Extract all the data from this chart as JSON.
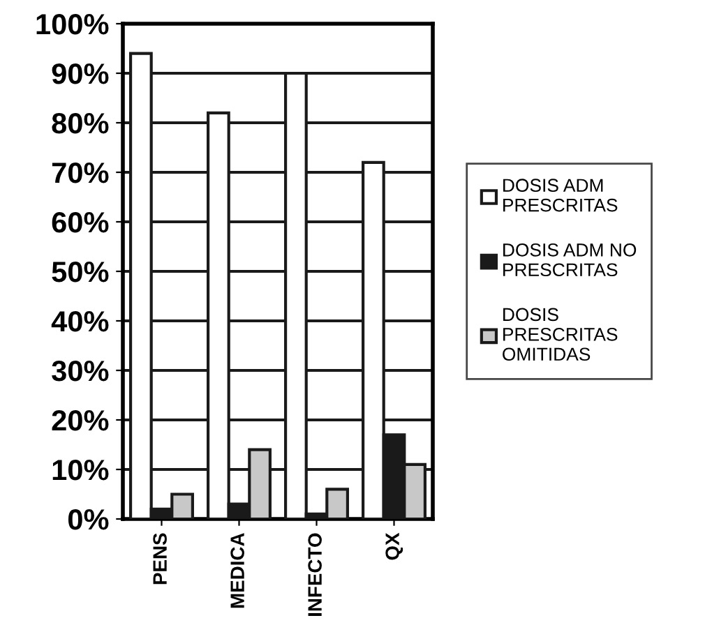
{
  "chart_data": {
    "type": "bar",
    "categories": [
      "PENS",
      "MEDICA",
      "INFECTO",
      "QX"
    ],
    "series": [
      {
        "name": "DOSIS ADM\nPRESCRITAS",
        "color": "#ffffff",
        "values": [
          94,
          82,
          90,
          72
        ]
      },
      {
        "name": "DOSIS ADM NO\nPRESCRITAS",
        "color": "#1a1a1a",
        "values": [
          2,
          3,
          1,
          17
        ]
      },
      {
        "name": "DOSIS\nPRESCRITAS\nOMITIDAS",
        "color": "#c8c8c8",
        "values": [
          5,
          14,
          6,
          11
        ]
      }
    ],
    "ylim": [
      0,
      100
    ],
    "yticks": [
      {
        "value": 0,
        "label": "0%"
      },
      {
        "value": 10,
        "label": "10%"
      },
      {
        "value": 20,
        "label": "20%"
      },
      {
        "value": 30,
        "label": "30%"
      },
      {
        "value": 40,
        "label": "40%"
      },
      {
        "value": 50,
        "label": "50%"
      },
      {
        "value": 60,
        "label": "60%"
      },
      {
        "value": 70,
        "label": "70%"
      },
      {
        "value": 80,
        "label": "80%"
      },
      {
        "value": 90,
        "label": "90%"
      },
      {
        "value": 100,
        "label": "100%"
      }
    ],
    "grid": "y",
    "legend": "right"
  }
}
